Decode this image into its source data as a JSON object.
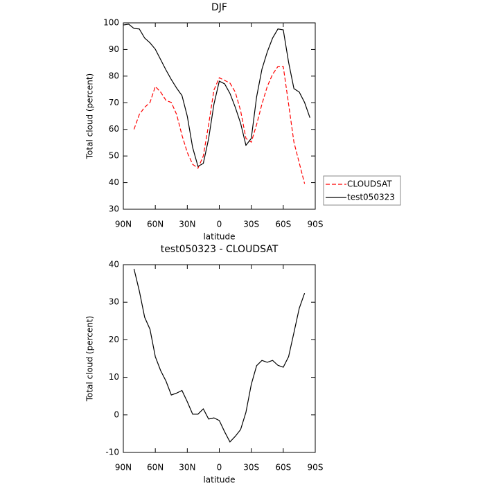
{
  "chart_data": [
    {
      "type": "line",
      "title": "DJF",
      "xlabel": "latitude",
      "ylabel": "Total cloud (percent)",
      "x": [
        90,
        85,
        80,
        75,
        70,
        65,
        60,
        55,
        50,
        45,
        40,
        35,
        30,
        25,
        20,
        15,
        10,
        5,
        0,
        -5,
        -10,
        -15,
        -20,
        -25,
        -30,
        -35,
        -40,
        -45,
        -50,
        -55,
        -60,
        -65,
        -70,
        -75,
        -80,
        -85
      ],
      "xlim": [
        90,
        -90
      ],
      "xticks": [
        {
          "value": 90,
          "label": "90N"
        },
        {
          "value": 60,
          "label": "60N"
        },
        {
          "value": 30,
          "label": "30N"
        },
        0,
        {
          "value": -30,
          "label": "30S"
        },
        {
          "value": -60,
          "label": "60S"
        },
        {
          "value": -90,
          "label": "90S"
        }
      ],
      "ylim": [
        30,
        100
      ],
      "yticks": [
        30,
        40,
        50,
        60,
        70,
        80,
        90,
        100
      ],
      "legend": "right",
      "series": [
        {
          "name": "CLOUDSAT",
          "color": "#ff0000",
          "style": "dashed",
          "values": [
            null,
            null,
            60,
            65.6,
            68.3,
            70.1,
            76.1,
            74,
            70.9,
            70.1,
            65.6,
            57.8,
            51.3,
            46.9,
            45.4,
            50,
            61.8,
            74.8,
            79.4,
            78.4,
            77.4,
            74,
            67,
            56.6,
            55.2,
            61.8,
            69.5,
            76.1,
            80.7,
            83.6,
            83.6,
            69.5,
            55.2,
            47.4,
            39.6,
            null
          ]
        },
        {
          "name": "test050323",
          "color": "#000000",
          "style": "solid",
          "values": [
            99.2,
            99.5,
            97.9,
            97.7,
            94.3,
            92.5,
            90.1,
            86.2,
            82.3,
            78.7,
            75.5,
            72.7,
            64.9,
            53.2,
            46.1,
            47.2,
            56.5,
            69.5,
            78.1,
            77.1,
            73.5,
            68.3,
            62.3,
            54,
            56.6,
            72.2,
            82.6,
            89.1,
            94.3,
            97.7,
            97.4,
            85.2,
            75.3,
            74,
            70.1,
            64.4
          ]
        }
      ]
    },
    {
      "type": "line",
      "title": "test050323 - CLOUDSAT",
      "xlabel": "latitude",
      "ylabel": "Total cloud (percent)",
      "x": [
        90,
        85,
        80,
        75,
        70,
        65,
        60,
        55,
        50,
        45,
        40,
        35,
        30,
        25,
        20,
        15,
        10,
        5,
        0,
        -5,
        -10,
        -15,
        -20,
        -25,
        -30,
        -35,
        -40,
        -45,
        -50,
        -55,
        -60,
        -65,
        -70,
        -75,
        -80,
        -85
      ],
      "xlim": [
        90,
        -90
      ],
      "xticks": [
        {
          "value": 90,
          "label": "90N"
        },
        {
          "value": 60,
          "label": "60N"
        },
        {
          "value": 30,
          "label": "30N"
        },
        0,
        {
          "value": -30,
          "label": "30S"
        },
        {
          "value": -60,
          "label": "60S"
        },
        {
          "value": -90,
          "label": "90S"
        }
      ],
      "ylim": [
        -10,
        40
      ],
      "yticks": [
        -10,
        0,
        10,
        20,
        30,
        40
      ],
      "series": [
        {
          "color": "#000000",
          "style": "solid",
          "values": [
            null,
            null,
            38.9,
            33,
            26,
            22.8,
            15.5,
            11.8,
            9,
            5.3,
            5.8,
            6.5,
            3.5,
            0.2,
            0.2,
            1.6,
            -1.1,
            -0.8,
            -1.5,
            -4.5,
            -7.2,
            -5.7,
            -3.9,
            0.7,
            8.1,
            13.1,
            14.5,
            14,
            14.5,
            13.2,
            12.7,
            15.5,
            21.9,
            28.4,
            32.4,
            null
          ]
        }
      ]
    }
  ]
}
